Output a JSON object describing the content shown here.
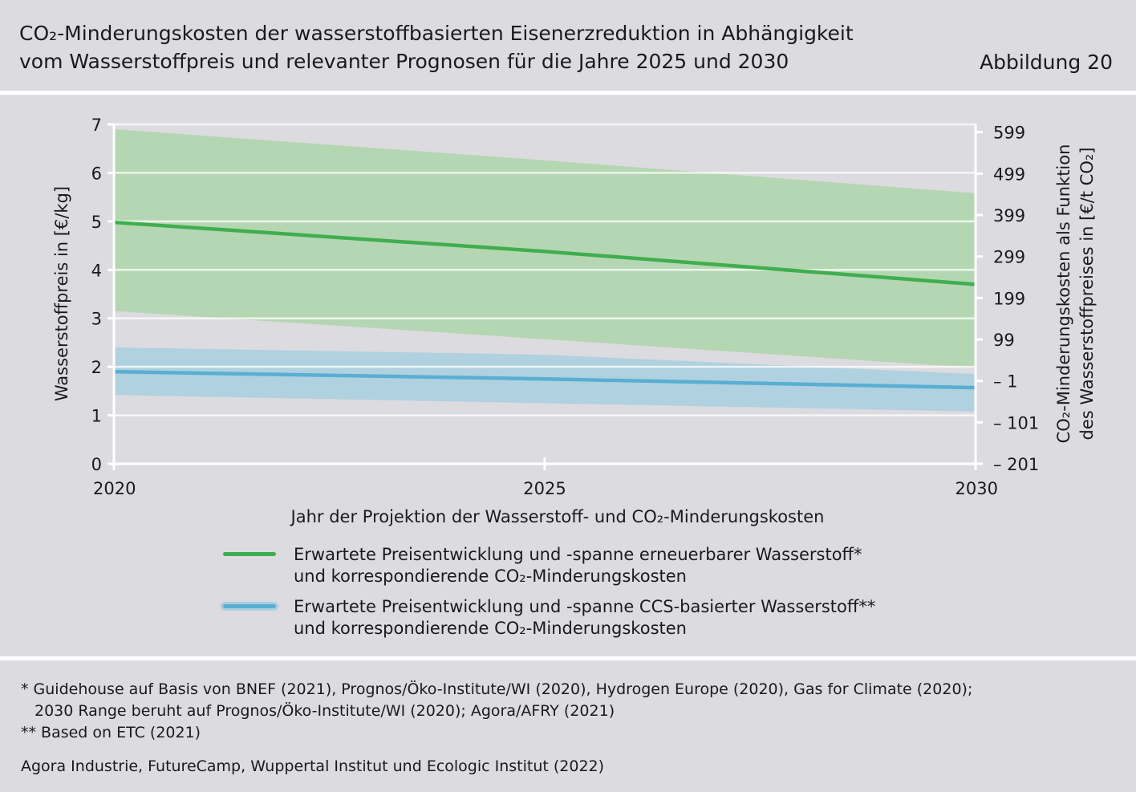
{
  "header": {
    "title_line1": "CO₂-Minderungskosten der wasserstoffbasierten Eisenerzreduktion in Abhängigkeit",
    "title_line2": "vom Wasserstoffpreis und relevanter Prognosen für die Jahre 2025 und 2030",
    "figure_label": "Abbildung 20"
  },
  "chart_data": {
    "type": "area",
    "x": [
      2020,
      2025,
      2030
    ],
    "xlim": [
      2020,
      2030
    ],
    "x_ticks": [
      "2020",
      "2025",
      "2030"
    ],
    "xlabel": "Jahr der Projektion der Wasserstoff- und CO₂-Minderungskosten",
    "ylabel": "Wasserstoffpreis in [€/kg]",
    "ylim": [
      0,
      7
    ],
    "y_ticks": [
      "0",
      "1",
      "2",
      "3",
      "4",
      "5",
      "6",
      "7"
    ],
    "y2label_line1": "CO₂-Minderungskosten als Funktion",
    "y2label_line2": "des Wasserstoffpreises in [€/t CO₂]",
    "y2_ticks": [
      {
        "label": "– 201",
        "value": 0
      },
      {
        "label": "– 101",
        "value": 0.855
      },
      {
        "label": "– 1",
        "value": 1.71
      },
      {
        "label": "99",
        "value": 2.565
      },
      {
        "label": "199",
        "value": 3.42
      },
      {
        "label": "299",
        "value": 4.275
      },
      {
        "label": "399",
        "value": 5.13
      },
      {
        "label": "499",
        "value": 5.985
      },
      {
        "label": "599",
        "value": 6.84
      }
    ],
    "grid": true,
    "series": [
      {
        "name": "Erwartete Preisentwicklung und -spanne erneuerbarer Wasserstoff*",
        "color": "#3fae4e",
        "band_color": "#b5d6b2",
        "values": [
          4.98,
          4.38,
          3.7
        ],
        "upper": [
          6.9,
          6.26,
          5.58
        ],
        "lower": [
          3.15,
          2.57,
          1.98
        ]
      },
      {
        "name": "Erwartete Preisentwicklung und -spanne CCS-basierter Wasserstoff**",
        "color": "#5aaed3",
        "band_color": "#aacfde",
        "values": [
          1.9,
          1.75,
          1.57
        ],
        "upper": [
          2.4,
          2.25,
          1.85
        ],
        "lower": [
          1.42,
          1.25,
          1.08
        ]
      }
    ]
  },
  "legend": [
    {
      "line1": "Erwartete Preisentwicklung und -spanne erneuerbarer Wasserstoff*",
      "line2": "und korrespondierende CO₂-Minderungskosten",
      "color": "#3fae4e"
    },
    {
      "line1": "Erwartete Preisentwicklung und -spanne CCS-basierter Wasserstoff**",
      "line2": "und korrespondierende CO₂-Minderungskosten",
      "color": "#5aaed3"
    }
  ],
  "footnotes": {
    "note1_line1": "* Guidehouse auf Basis von BNEF (2021), Prognos/Öko-Institute/WI (2020), Hydrogen Europe (2020), Gas for Climate (2020);",
    "note1_line2": "2030 Range beruht auf Prognos/Öko-Institute/WI (2020); Agora/AFRY (2021)",
    "note2": "** Based on ETC (2021)",
    "source": "Agora Industrie, FutureCamp, Wuppertal Institut und Ecologic Institut (2022)"
  }
}
